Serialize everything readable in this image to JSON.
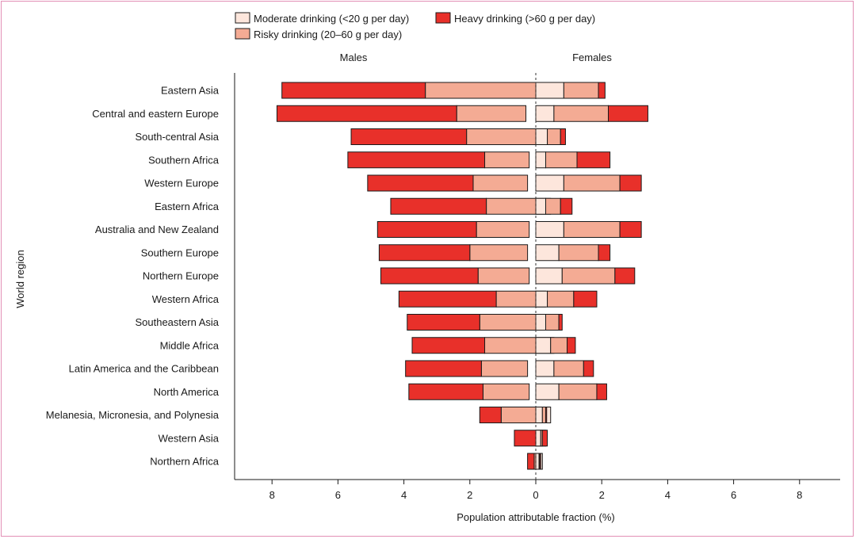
{
  "chart_data": {
    "type": "bar",
    "orientation": "horizontal-diverging-stacked",
    "xlabel": "Population attributable fraction (%)",
    "ylabel": "World region",
    "xlim": [
      -9,
      9
    ],
    "xticks": [
      8,
      6,
      4,
      2,
      0,
      2,
      4,
      6,
      8
    ],
    "sides": {
      "left": "Males",
      "right": "Females"
    },
    "legend": {
      "placement": "top-center",
      "entries": [
        {
          "key": "moderate",
          "label": "Moderate drinking (<20 g per day)",
          "color": "#fde6dc"
        },
        {
          "key": "risky",
          "label": "Risky drinking (20–60 g per day)",
          "color": "#f4ab94"
        },
        {
          "key": "heavy",
          "label": "Heavy drinking (>60 g per day)",
          "color": "#e8302a"
        }
      ]
    },
    "series_order": [
      "moderate",
      "risky",
      "heavy"
    ],
    "categories": [
      "Eastern Asia",
      "Central and eastern Europe",
      "South-central Asia",
      "Southern Africa",
      "Western Europe",
      "Eastern Africa",
      "Australia and New Zealand",
      "Southern Europe",
      "Northern Europe",
      "Western Africa",
      "Southeastern Asia",
      "Middle Africa",
      "Latin America and the Caribbean",
      "North America",
      "Melanesia, Micronesia, and Polynesia",
      "Western Asia",
      "Northern Africa"
    ],
    "males": {
      "moderate": [
        0.9,
        -0.3,
        0.6,
        -0.2,
        -0.25,
        0.45,
        -0.2,
        -0.25,
        -0.2,
        0.3,
        0.55,
        0.55,
        -0.25,
        -0.2,
        0.45,
        0.3,
        0.2
      ],
      "risky": [
        3.35,
        2.1,
        2.1,
        1.35,
        1.65,
        1.5,
        1.6,
        1.75,
        1.55,
        1.2,
        1.7,
        1.55,
        1.4,
        1.4,
        1.05,
        0.0,
        0.05
      ],
      "heavy": [
        4.35,
        5.45,
        3.5,
        4.15,
        3.2,
        2.9,
        3.0,
        2.75,
        2.95,
        2.95,
        2.2,
        2.2,
        2.3,
        2.25,
        0.65,
        0.65,
        0.2
      ]
    },
    "females": {
      "moderate": [
        0.85,
        0.55,
        0.35,
        0.3,
        0.85,
        0.3,
        0.85,
        0.7,
        0.8,
        0.35,
        0.3,
        0.45,
        0.55,
        0.7,
        0.2,
        0.15,
        0.1
      ],
      "risky": [
        1.05,
        1.65,
        0.4,
        0.95,
        1.7,
        0.45,
        1.7,
        1.2,
        1.6,
        0.8,
        0.4,
        0.5,
        0.9,
        1.15,
        0.1,
        0.05,
        0.02
      ],
      "heavy": [
        0.2,
        1.2,
        0.15,
        1.0,
        0.65,
        0.35,
        0.65,
        0.35,
        0.6,
        0.7,
        0.1,
        0.25,
        0.3,
        0.3,
        0.03,
        0.15,
        0.03
      ]
    }
  }
}
